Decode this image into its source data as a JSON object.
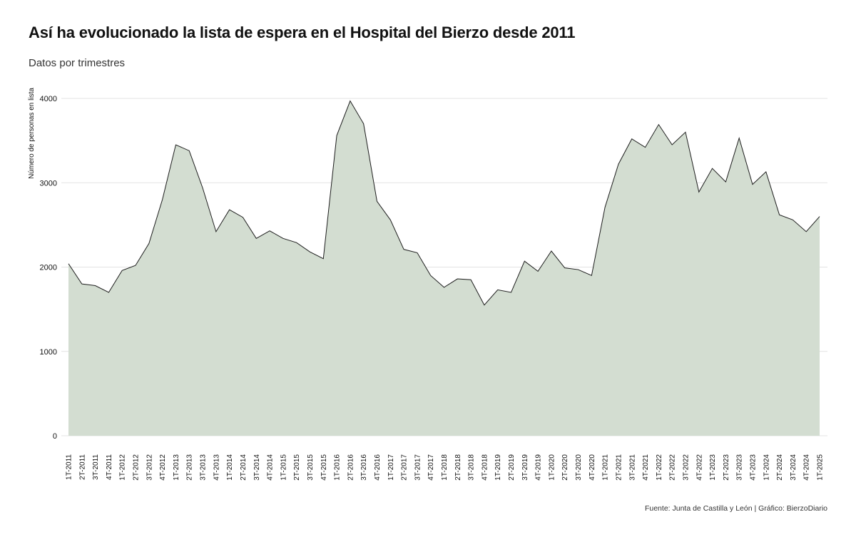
{
  "title": "Así ha evolucionado la lista de espera en el Hospital del Bierzo desde 2011",
  "subtitle": "Datos por trimestres",
  "caption": "Fuente: Junta de Castilla y León | Gráfico: BierzoDiario",
  "colors": {
    "area_fill": "#d3ddd1",
    "line": "#1e1e1e",
    "grid": "#e3e3e3"
  },
  "chart_data": {
    "type": "area",
    "title": "Así ha evolucionado la lista de espera en el Hospital del Bierzo desde 2011",
    "subtitle": "Datos por trimestres",
    "xlabel": "",
    "ylabel": "Número de personas en lista",
    "ylim": [
      0,
      4200
    ],
    "yticks": [
      0,
      1000,
      2000,
      3000,
      4000
    ],
    "grid": "horizontal",
    "x": [
      "1T-2011",
      "2T-2011",
      "3T-2011",
      "4T-2011",
      "1T-2012",
      "2T-2012",
      "3T-2012",
      "4T-2012",
      "1T-2013",
      "2T-2013",
      "3T-2013",
      "4T-2013",
      "1T-2014",
      "2T-2014",
      "3T-2014",
      "4T-2014",
      "1T-2015",
      "2T-2015",
      "3T-2015",
      "4T-2015",
      "1T-2016",
      "2T-2016",
      "3T-2016",
      "4T-2016",
      "1T-2017",
      "2T-2017",
      "3T-2017",
      "4T-2017",
      "1T-2018",
      "2T-2018",
      "3T-2018",
      "4T-2018",
      "1T-2019",
      "2T-2019",
      "3T-2019",
      "4T-2019",
      "1T-2020",
      "2T-2020",
      "3T-2020",
      "4T-2020",
      "1T-2021",
      "2T-2021",
      "3T-2021",
      "4T-2021",
      "1T-2022",
      "2T-2022",
      "3T-2022",
      "4T-2022",
      "1T-2023",
      "2T-2023",
      "3T-2023",
      "4T-2023",
      "1T-2024",
      "2T-2024",
      "3T-2024",
      "4T-2024",
      "1T-2025"
    ],
    "values": [
      2040,
      1800,
      1780,
      1700,
      1960,
      2020,
      2280,
      2800,
      3450,
      3380,
      2940,
      2420,
      2680,
      2590,
      2340,
      2430,
      2340,
      2290,
      2180,
      2100,
      3560,
      3970,
      3700,
      2780,
      2560,
      2210,
      2170,
      1900,
      1760,
      1860,
      1850,
      1550,
      1730,
      1700,
      2070,
      1950,
      2190,
      1990,
      1970,
      1900,
      2710,
      3220,
      3520,
      3420,
      3690,
      3450,
      3600,
      2890,
      3170,
      3010,
      3530,
      2980,
      3130,
      2620,
      2560,
      2420,
      2600
    ]
  }
}
